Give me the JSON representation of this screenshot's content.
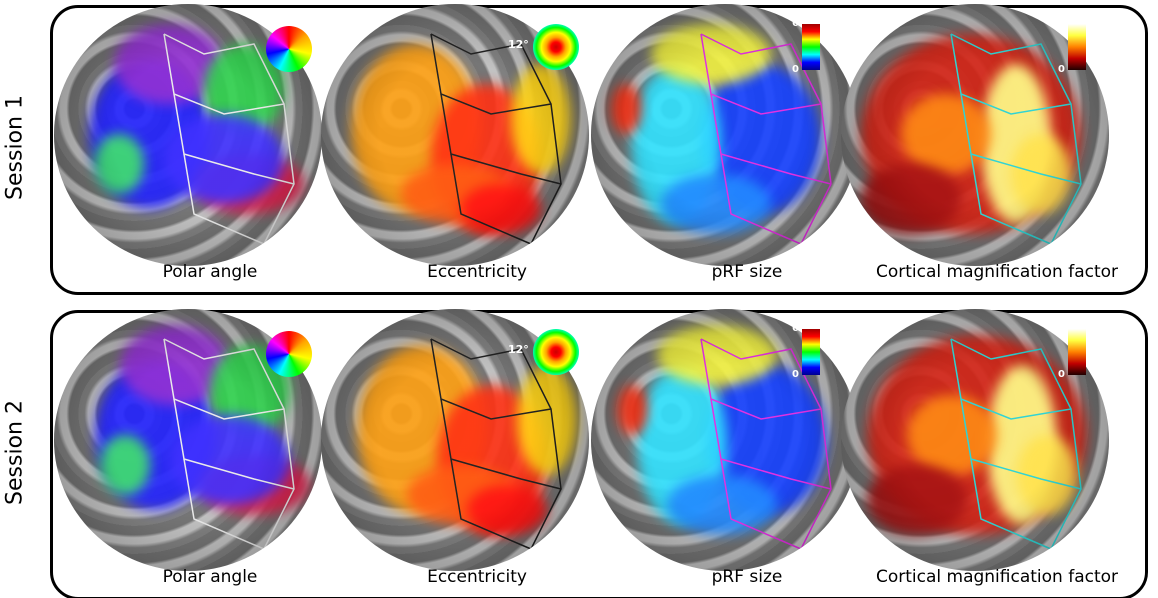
{
  "rows": [
    {
      "label": "Session 1",
      "panels": [
        {
          "caption": "Polar angle"
        },
        {
          "caption": "Eccentricity",
          "legend_label": "12°"
        },
        {
          "caption": "pRF size",
          "colorbar": {
            "max": 6,
            "min": 0
          }
        },
        {
          "caption": "Cortical magnification factor",
          "colorbar": {
            "max": 6,
            "min": 0
          }
        }
      ]
    },
    {
      "label": "Session 2",
      "panels": [
        {
          "caption": "Polar angle"
        },
        {
          "caption": "Eccentricity",
          "legend_label": "12°"
        },
        {
          "caption": "pRF size",
          "colorbar": {
            "max": 6,
            "min": 0
          }
        },
        {
          "caption": "Cortical magnification factor",
          "colorbar": {
            "max": 6,
            "min": 0
          }
        }
      ]
    }
  ]
}
